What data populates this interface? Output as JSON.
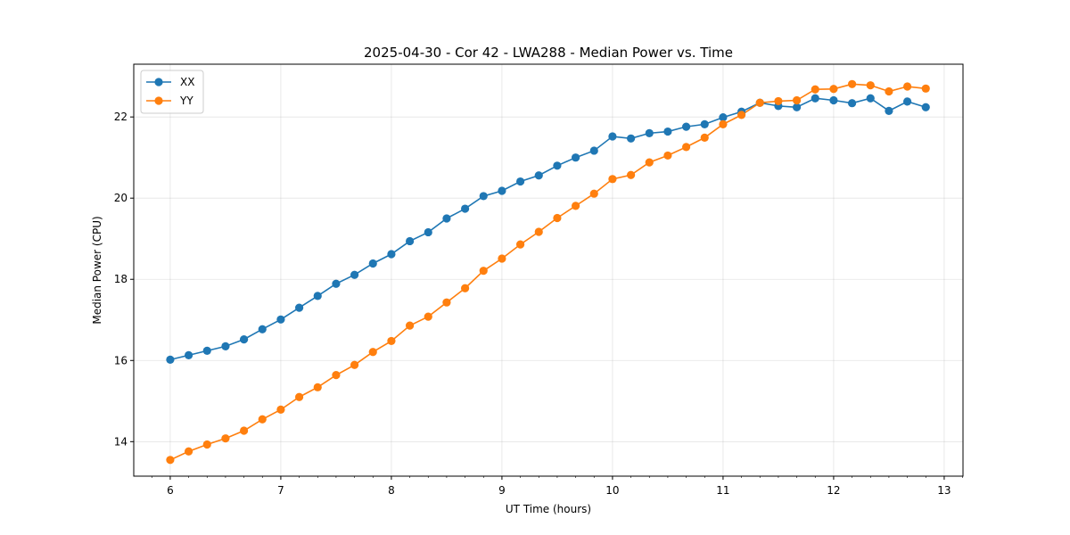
{
  "chart_data": {
    "type": "line",
    "title": "2025-04-30 - Cor 42 - LWA288 - Median Power vs. Time",
    "xlabel": "UT Time (hours)",
    "ylabel": "Median Power (CPU)",
    "xlim": [
      5.67,
      13.17
    ],
    "ylim": [
      13.15,
      23.3
    ],
    "xticks": [
      6,
      7,
      8,
      9,
      10,
      11,
      12,
      13
    ],
    "xtick_labels": [
      "6",
      "7",
      "8",
      "9",
      "10",
      "11",
      "12",
      "13"
    ],
    "yticks": [
      14,
      16,
      18,
      20,
      22
    ],
    "ytick_labels": [
      "14",
      "16",
      "18",
      "20",
      "22"
    ],
    "grid": true,
    "legend_position": "upper-left",
    "x": [
      6.0,
      6.1667,
      6.3333,
      6.5,
      6.6667,
      6.8333,
      7.0,
      7.1667,
      7.3333,
      7.5,
      7.6667,
      7.8333,
      8.0,
      8.1667,
      8.3333,
      8.5,
      8.6667,
      8.8333,
      9.0,
      9.1667,
      9.3333,
      9.5,
      9.6667,
      9.8333,
      10.0,
      10.1667,
      10.3333,
      10.5,
      10.6667,
      10.8333,
      11.0,
      11.1667,
      11.3333,
      11.5,
      11.6667,
      11.8333,
      12.0,
      12.1667,
      12.3333,
      12.5,
      12.6667,
      12.8333
    ],
    "series": [
      {
        "name": "XX",
        "color": "#1f77b4",
        "values": [
          16.02,
          16.13,
          16.24,
          16.35,
          16.52,
          16.77,
          17.01,
          17.3,
          17.59,
          17.89,
          18.11,
          18.39,
          18.62,
          18.94,
          19.16,
          19.5,
          19.74,
          20.05,
          20.18,
          20.41,
          20.56,
          20.8,
          21.0,
          21.17,
          21.52,
          21.47,
          21.6,
          21.64,
          21.76,
          21.82,
          21.99,
          22.13,
          22.35,
          22.27,
          22.24,
          22.46,
          22.41,
          22.34,
          22.46,
          22.15,
          22.38,
          22.24
        ]
      },
      {
        "name": "YY",
        "color": "#ff7f0e",
        "values": [
          13.55,
          13.76,
          13.93,
          14.08,
          14.27,
          14.55,
          14.79,
          15.1,
          15.34,
          15.64,
          15.89,
          16.21,
          16.48,
          16.86,
          17.08,
          17.43,
          17.78,
          18.21,
          18.51,
          18.86,
          19.17,
          19.51,
          19.81,
          20.11,
          20.47,
          20.57,
          20.88,
          21.05,
          21.26,
          21.49,
          21.82,
          22.05,
          22.35,
          22.39,
          22.41,
          22.68,
          22.69,
          22.81,
          22.78,
          22.63,
          22.75,
          22.7
        ]
      }
    ]
  }
}
